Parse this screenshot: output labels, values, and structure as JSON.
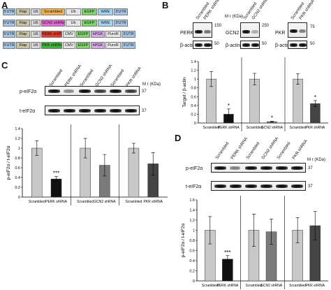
{
  "panel_labels": {
    "a": "A",
    "b": "B",
    "c": "C",
    "d": "D"
  },
  "constructs": [
    {
      "segments": [
        {
          "label": "5'UTR",
          "color": "#a6c8e6"
        },
        {
          "label": "Flap",
          "color": "#c9c3a6"
        },
        {
          "label": "U6",
          "color": "#d9d9d9"
        },
        {
          "label": "Scrambled",
          "color": "#f2b24e"
        },
        {
          "label": "Ub",
          "color": "#e6e6e6"
        },
        {
          "label": "EGFP",
          "color": "#7ed36b"
        },
        {
          "label": "WRE",
          "color": "#a0d4f2"
        },
        {
          "label": "3'UTR",
          "color": "#a6c8e6"
        }
      ]
    },
    {
      "segments": [
        {
          "label": "5'UTR",
          "color": "#a6c8e6"
        },
        {
          "label": "Flap",
          "color": "#c9c3a6"
        },
        {
          "label": "U6",
          "color": "#d9d9d9"
        },
        {
          "label": "GCN2 shRNA",
          "color": "#e06ad6"
        },
        {
          "label": "Ub",
          "color": "#e6e6e6"
        },
        {
          "label": "EGFP",
          "color": "#7ed36b"
        },
        {
          "label": "WRE",
          "color": "#a0d4f2"
        },
        {
          "label": "3'UTR",
          "color": "#a6c8e6"
        }
      ]
    },
    {
      "segments": [
        {
          "label": "5'UTR",
          "color": "#a6c8e6"
        },
        {
          "label": "Flap",
          "color": "#c9c3a6"
        },
        {
          "label": "U6",
          "color": "#d9d9d9"
        },
        {
          "label": "PERK shRNA",
          "color": "#e23b2e"
        },
        {
          "label": "CMV",
          "color": "#e6e6e6"
        },
        {
          "label": "EGFP",
          "color": "#7ed36b"
        },
        {
          "label": "hPGK",
          "color": "#d7a8e6"
        },
        {
          "label": "PuroR",
          "color": "#e6e6e6"
        },
        {
          "label": "3'UTR",
          "color": "#a6c8e6"
        }
      ]
    },
    {
      "segments": [
        {
          "label": "5'UTR",
          "color": "#a6c8e6"
        },
        {
          "label": "Flap",
          "color": "#c9c3a6"
        },
        {
          "label": "U6",
          "color": "#d9d9d9"
        },
        {
          "label": "PKR shRNA",
          "color": "#3fb53a"
        },
        {
          "label": "CMV",
          "color": "#e6e6e6"
        },
        {
          "label": "EGFP",
          "color": "#7ed36b"
        },
        {
          "label": "hPGK",
          "color": "#d7a8e6"
        },
        {
          "label": "PuroR",
          "color": "#e6e6e6"
        },
        {
          "label": "3'UTR",
          "color": "#a6c8e6"
        }
      ]
    }
  ],
  "panel_b": {
    "blots": [
      {
        "lanes": [
          "Scrambled",
          "PERK shRNA"
        ],
        "rows": [
          "PERK",
          "β-actin"
        ],
        "markers": [
          "150",
          "50"
        ]
      },
      {
        "lanes": [
          "Scrambled",
          "GCN2 shRNA"
        ],
        "rows": [
          "GCN2",
          "β-actin"
        ],
        "markers": [
          "250",
          "50"
        ]
      },
      {
        "lanes": [
          "Scrambled",
          "PKR shRNA"
        ],
        "rows": [
          "PKR",
          "β-actin"
        ],
        "markers": [
          "75",
          "50"
        ]
      }
    ],
    "mw_label": "M r (KDa)"
  },
  "panel_c": {
    "lanes": [
      "Scrambled",
      "PERK shRNA",
      "Scrambled",
      "GCN2 shRNA",
      "Scrambled",
      "PKR shRNA"
    ],
    "rows": [
      "p-eIF2α",
      "t-eIF2α"
    ],
    "markers": [
      "37",
      "37"
    ],
    "mw_label": "M r (KDa)"
  },
  "panel_d": {
    "lanes": [
      "Scrambled",
      "PERK shRNA",
      "Scrambled",
      "GCN2 shRNA",
      "Scrambled",
      "PKR shRNA"
    ],
    "rows": [
      "p-eIF2α",
      "t-eIF2α"
    ],
    "markers": [
      "37",
      "37"
    ],
    "mw_label": "M r (KDa)"
  },
  "chart_data": [
    {
      "type": "bar",
      "id": "B",
      "ylabel": "Target / β-actin",
      "ylim": [
        0,
        1.4
      ],
      "yticks": [
        "0",
        "0.2",
        "0.4",
        "0.6",
        "0.8",
        "1",
        "1.2",
        "1.4"
      ],
      "groups": [
        {
          "categories": [
            "Scrambled",
            "PERK shRNA"
          ],
          "values": [
            1.0,
            0.2
          ],
          "errors": [
            0.17,
            0.12
          ],
          "colors": [
            "#c8c8c8",
            "#111111"
          ],
          "annotations": [
            "",
            "*"
          ]
        },
        {
          "categories": [
            "Scrambled",
            "GCN2 shRNA"
          ],
          "values": [
            1.0,
            0.03
          ],
          "errors": [
            0.13,
            0.01
          ],
          "colors": [
            "#c8c8c8",
            "#7a7a7a"
          ],
          "annotations": [
            "",
            "*"
          ]
        },
        {
          "categories": [
            "Scrambled",
            "PKR shRNA"
          ],
          "values": [
            1.0,
            0.44
          ],
          "errors": [
            0.12,
            0.07
          ],
          "colors": [
            "#c8c8c8",
            "#444444"
          ],
          "annotations": [
            "",
            "*"
          ]
        }
      ]
    },
    {
      "type": "bar",
      "id": "C",
      "ylabel": "p-eIF2α / t-eIF2α",
      "ylim": [
        0,
        1.4
      ],
      "yticks": [
        "0",
        "0.2",
        "0.4",
        "0.6",
        "0.8",
        "1",
        "1.2",
        "1.4"
      ],
      "groups": [
        {
          "categories": [
            "Scrambled",
            "PERK shRNA"
          ],
          "values": [
            1.0,
            0.37
          ],
          "errors": [
            0.15,
            0.05
          ],
          "colors": [
            "#c8c8c8",
            "#111111"
          ],
          "annotations": [
            "",
            "***"
          ]
        },
        {
          "categories": [
            "Scrambled",
            "GCN2 shRNA"
          ],
          "values": [
            1.0,
            0.65
          ],
          "errors": [
            0.2,
            0.22
          ],
          "colors": [
            "#c8c8c8",
            "#7a7a7a"
          ],
          "annotations": [
            "",
            ""
          ]
        },
        {
          "categories": [
            "Scrambled",
            "PKR shRNA"
          ],
          "values": [
            1.0,
            0.68
          ],
          "errors": [
            0.1,
            0.23
          ],
          "colors": [
            "#c8c8c8",
            "#444444"
          ],
          "annotations": [
            "",
            ""
          ]
        }
      ]
    },
    {
      "type": "bar",
      "id": "D",
      "ylabel": "p-eIF2α / t-eIF2α",
      "ylim": [
        0,
        1.6
      ],
      "yticks": [
        "0",
        "0.2",
        "0.4",
        "0.6",
        "0.8",
        "1",
        "1.2",
        "1.4",
        "1.6"
      ],
      "groups": [
        {
          "categories": [
            "Scrambled",
            "PERK shRNA"
          ],
          "values": [
            1.0,
            0.43
          ],
          "errors": [
            0.27,
            0.07
          ],
          "colors": [
            "#c8c8c8",
            "#111111"
          ],
          "annotations": [
            "",
            "***"
          ]
        },
        {
          "categories": [
            "Scrambled",
            "GCN2 shRNA"
          ],
          "values": [
            1.0,
            0.97
          ],
          "errors": [
            0.32,
            0.25
          ],
          "colors": [
            "#c8c8c8",
            "#7a7a7a"
          ],
          "annotations": [
            "",
            ""
          ]
        },
        {
          "categories": [
            "Scrambled",
            "PKR shRNA"
          ],
          "values": [
            1.0,
            1.09
          ],
          "errors": [
            0.25,
            0.28
          ],
          "colors": [
            "#c8c8c8",
            "#444444"
          ],
          "annotations": [
            "",
            ""
          ]
        }
      ]
    }
  ]
}
